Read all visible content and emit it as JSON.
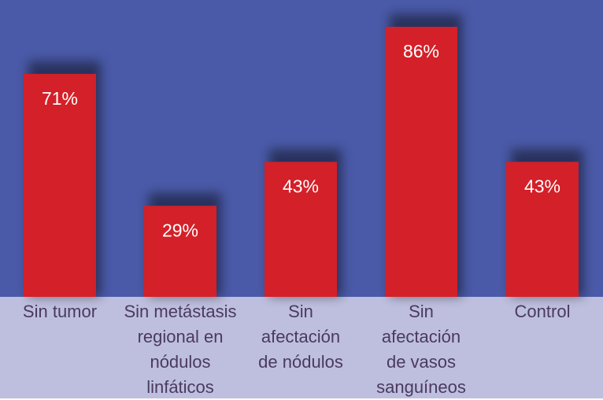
{
  "chart_data": {
    "type": "bar",
    "categories": [
      "Sin tumor",
      "Sin metástasis regional en nódulos linfáticos",
      "Sin afectación de nódulos",
      "Sin afectación de vasos sanguíneos",
      "Control"
    ],
    "category_lines": [
      [
        "Sin tumor"
      ],
      [
        "Sin metástasis",
        "regional en",
        "nódulos",
        "linfáticos"
      ],
      [
        "Sin",
        "afectación",
        "de nódulos"
      ],
      [
        "Sin",
        "afectación",
        "de vasos",
        "sanguíneos"
      ],
      [
        "Control"
      ]
    ],
    "values": [
      71,
      29,
      43,
      86,
      43
    ],
    "data_labels": [
      "71%",
      "29%",
      "43%",
      "86%",
      "43%"
    ],
    "ylim": [
      0,
      100
    ],
    "grid": false,
    "colors": {
      "plot_background": "#4a5aa8",
      "bar": "#d42028",
      "label_band": "#bebfdf",
      "category_text": "#4a3a5e",
      "data_label_text": "#ffffff"
    }
  }
}
